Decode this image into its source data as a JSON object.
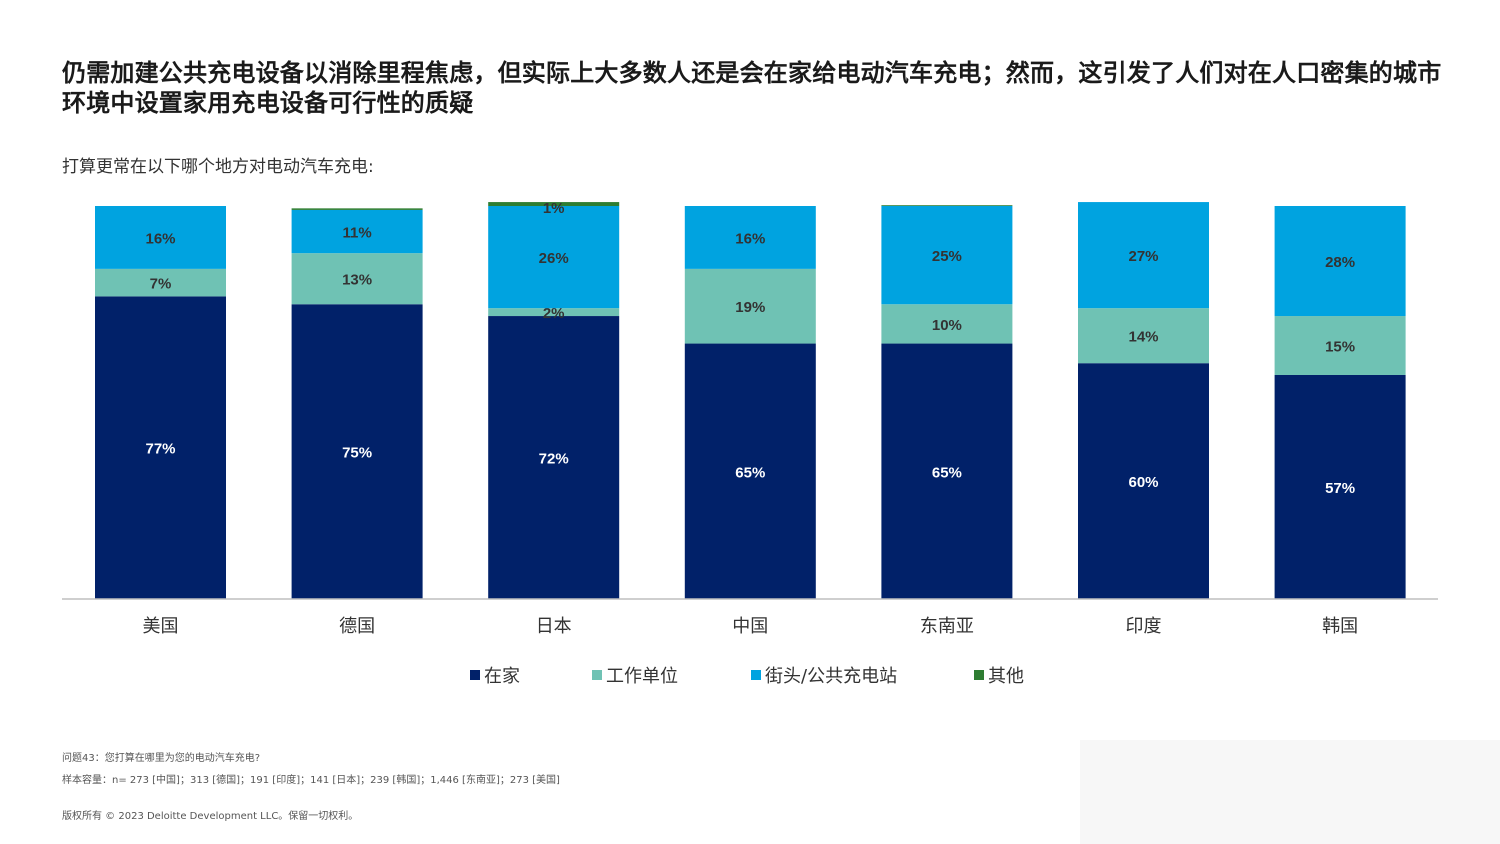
{
  "title": "仍需加建公共充电设备以消除里程焦虑，但实际上大多数人还是会在家给电动汽车充电；然而，这引发了人们对在人口密集的城市环境中设置家用充电设备可行性的质疑",
  "subtitle": "打算更常在以下哪个地方对电动汽车充电:",
  "chart_data": {
    "type": "bar",
    "stacked": true,
    "categories": [
      "美国",
      "德国",
      "日本",
      "中国",
      "东南亚",
      "印度",
      "韩国"
    ],
    "series": [
      {
        "name": "在家",
        "color": "#012169",
        "values": [
          77,
          75,
          72,
          65,
          65,
          60,
          57
        ],
        "labels": [
          "77%",
          "75%",
          "72%",
          "65%",
          "65%",
          "60%",
          "57%"
        ]
      },
      {
        "name": "工作单位",
        "color": "#6FC2B4",
        "values": [
          7,
          13,
          2,
          19,
          10,
          14,
          15
        ],
        "labels": [
          "7%",
          "13%",
          "2%",
          "19%",
          "10%",
          "14%",
          "15%"
        ]
      },
      {
        "name": "街头/公共充电站",
        "color": "#00A3E0",
        "values": [
          16,
          11,
          26,
          16,
          25,
          27,
          28
        ],
        "labels": [
          "16%",
          "11%",
          "26%",
          "16%",
          "25%",
          "27%",
          "28%"
        ]
      },
      {
        "name": "其他",
        "color": "#2E7D32",
        "values": [
          0,
          0.4,
          1,
          0,
          0.2,
          0,
          0
        ],
        "labels": [
          "",
          "",
          "1%",
          "",
          "",
          "",
          ""
        ]
      }
    ],
    "ylim": [
      0,
      100
    ],
    "grid": false,
    "legend_position": "bottom"
  },
  "legend": [
    {
      "label": "在家",
      "color": "#012169"
    },
    {
      "label": "工作单位",
      "color": "#6FC2B4"
    },
    {
      "label": "街头/公共充电站",
      "color": "#00A3E0"
    },
    {
      "label": "其他",
      "color": "#2E7D32"
    }
  ],
  "footnotes": {
    "question": "问题43：您打算在哪里为您的电动汽车充电?",
    "sample": "样本容量：n= 273 [中国]；313 [德国]；191 [印度]；141 [日本]；239 [韩国]；1,446 [东南亚]；273 [美国]",
    "copyright": "版权所有 © 2023 Deloitte Development LLC。保留一切权利。"
  }
}
